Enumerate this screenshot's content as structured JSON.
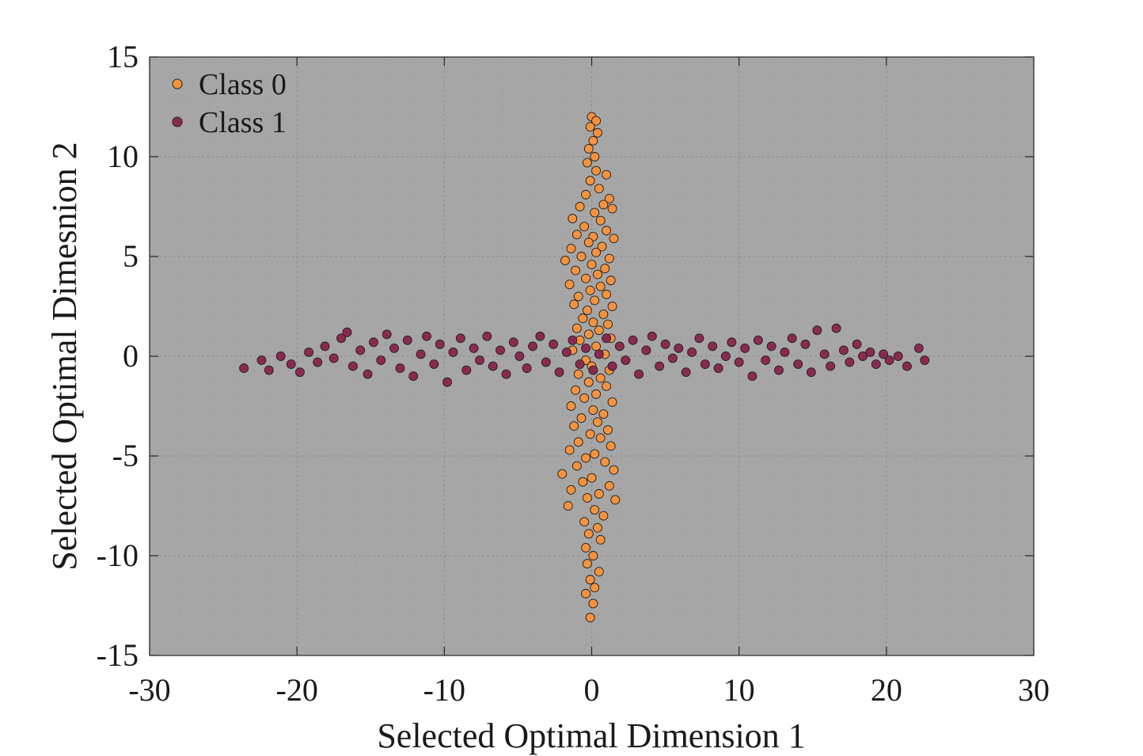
{
  "chart_data": {
    "type": "scatter",
    "title": "",
    "xlabel": "Selected Optimal Dimension 1",
    "ylabel": "Selected Optimal Dimesnion 2",
    "xlim": [
      -30,
      30
    ],
    "ylim": [
      -15,
      15
    ],
    "xticks": [
      -30,
      -20,
      -10,
      0,
      10,
      20,
      30
    ],
    "yticks": [
      -15,
      -10,
      -5,
      0,
      5,
      10,
      15
    ],
    "xtick_labels": [
      "-30",
      "-20",
      "-10",
      "0",
      "10",
      "20",
      "30"
    ],
    "ytick_labels": [
      "-15",
      "-10",
      "-5",
      "0",
      "5",
      "10",
      "15"
    ],
    "grid": "minor",
    "legend_position": "top-left",
    "background_color": "#a6a6a6",
    "series": [
      {
        "name": "Class 0",
        "color": "#f5923e",
        "values": [
          {
            "x": 0.0,
            "y": 12.0
          },
          {
            "x": 0.3,
            "y": 11.8
          },
          {
            "x": -0.1,
            "y": 11.5
          },
          {
            "x": 0.4,
            "y": 11.2
          },
          {
            "x": 0.1,
            "y": 10.8
          },
          {
            "x": -0.2,
            "y": 10.4
          },
          {
            "x": 0.2,
            "y": 10.0
          },
          {
            "x": -0.3,
            "y": 9.7
          },
          {
            "x": 1.0,
            "y": 9.1
          },
          {
            "x": 0.3,
            "y": 9.3
          },
          {
            "x": -0.1,
            "y": 8.8
          },
          {
            "x": 0.5,
            "y": 8.4
          },
          {
            "x": -0.4,
            "y": 8.1
          },
          {
            "x": 1.2,
            "y": 7.9
          },
          {
            "x": 0.8,
            "y": 7.6
          },
          {
            "x": -0.8,
            "y": 7.5
          },
          {
            "x": 0.2,
            "y": 7.2
          },
          {
            "x": 1.4,
            "y": 7.4
          },
          {
            "x": -1.3,
            "y": 6.9
          },
          {
            "x": 0.6,
            "y": 6.8
          },
          {
            "x": -0.5,
            "y": 6.5
          },
          {
            "x": 1.0,
            "y": 6.3
          },
          {
            "x": -1.0,
            "y": 6.1
          },
          {
            "x": 0.1,
            "y": 6.0
          },
          {
            "x": 1.5,
            "y": 5.9
          },
          {
            "x": -0.2,
            "y": 5.7
          },
          {
            "x": 0.7,
            "y": 5.5
          },
          {
            "x": -1.4,
            "y": 5.4
          },
          {
            "x": 0.3,
            "y": 5.2
          },
          {
            "x": -0.7,
            "y": 5.0
          },
          {
            "x": 1.2,
            "y": 4.9
          },
          {
            "x": -1.8,
            "y": 4.8
          },
          {
            "x": 0.0,
            "y": 4.6
          },
          {
            "x": 0.9,
            "y": 4.4
          },
          {
            "x": -1.1,
            "y": 4.3
          },
          {
            "x": 0.4,
            "y": 4.1
          },
          {
            "x": -0.4,
            "y": 3.9
          },
          {
            "x": 1.3,
            "y": 3.8
          },
          {
            "x": -1.5,
            "y": 3.6
          },
          {
            "x": 0.6,
            "y": 3.5
          },
          {
            "x": -0.1,
            "y": 3.3
          },
          {
            "x": 1.0,
            "y": 3.1
          },
          {
            "x": -0.9,
            "y": 3.0
          },
          {
            "x": 0.2,
            "y": 2.8
          },
          {
            "x": -1.2,
            "y": 2.6
          },
          {
            "x": 1.4,
            "y": 2.5
          },
          {
            "x": -0.3,
            "y": 2.3
          },
          {
            "x": 0.8,
            "y": 2.1
          },
          {
            "x": -0.6,
            "y": 1.9
          },
          {
            "x": 0.1,
            "y": 1.7
          },
          {
            "x": 1.1,
            "y": 1.6
          },
          {
            "x": -1.0,
            "y": 1.4
          },
          {
            "x": 0.5,
            "y": 1.3
          },
          {
            "x": -0.2,
            "y": 1.1
          },
          {
            "x": 1.3,
            "y": 0.9
          },
          {
            "x": -0.8,
            "y": 0.8
          },
          {
            "x": 0.3,
            "y": 0.5
          },
          {
            "x": -1.3,
            "y": 0.3
          },
          {
            "x": 0.9,
            "y": 0.1
          },
          {
            "x": -0.4,
            "y": -0.2
          },
          {
            "x": 0.0,
            "y": -0.5
          },
          {
            "x": 1.2,
            "y": -0.7
          },
          {
            "x": -0.9,
            "y": -0.9
          },
          {
            "x": 0.6,
            "y": -1.1
          },
          {
            "x": -0.2,
            "y": -1.3
          },
          {
            "x": 1.0,
            "y": -1.5
          },
          {
            "x": -1.1,
            "y": -1.7
          },
          {
            "x": 0.3,
            "y": -1.9
          },
          {
            "x": -0.5,
            "y": -2.1
          },
          {
            "x": 1.4,
            "y": -2.3
          },
          {
            "x": -1.4,
            "y": -2.5
          },
          {
            "x": 0.1,
            "y": -2.7
          },
          {
            "x": 0.8,
            "y": -2.9
          },
          {
            "x": -0.7,
            "y": -3.1
          },
          {
            "x": 0.4,
            "y": -3.3
          },
          {
            "x": -1.2,
            "y": -3.5
          },
          {
            "x": 1.1,
            "y": -3.7
          },
          {
            "x": -0.1,
            "y": -3.9
          },
          {
            "x": 0.6,
            "y": -4.1
          },
          {
            "x": -0.9,
            "y": -4.3
          },
          {
            "x": 1.3,
            "y": -4.5
          },
          {
            "x": -1.5,
            "y": -4.7
          },
          {
            "x": 0.2,
            "y": -4.9
          },
          {
            "x": -0.4,
            "y": -5.1
          },
          {
            "x": 0.9,
            "y": -5.3
          },
          {
            "x": -1.0,
            "y": -5.5
          },
          {
            "x": 1.5,
            "y": -5.7
          },
          {
            "x": -2.0,
            "y": -5.9
          },
          {
            "x": 0.0,
            "y": -6.1
          },
          {
            "x": -0.6,
            "y": -6.3
          },
          {
            "x": 1.2,
            "y": -6.5
          },
          {
            "x": -1.4,
            "y": -6.7
          },
          {
            "x": 0.5,
            "y": -6.9
          },
          {
            "x": -0.3,
            "y": -7.1
          },
          {
            "x": 1.6,
            "y": -7.2
          },
          {
            "x": -1.6,
            "y": -7.5
          },
          {
            "x": 0.2,
            "y": -7.7
          },
          {
            "x": 0.8,
            "y": -8.0
          },
          {
            "x": -0.5,
            "y": -8.3
          },
          {
            "x": 0.4,
            "y": -8.6
          },
          {
            "x": -0.2,
            "y": -8.9
          },
          {
            "x": 0.6,
            "y": -9.2
          },
          {
            "x": -0.4,
            "y": -9.6
          },
          {
            "x": 0.1,
            "y": -10.0
          },
          {
            "x": -0.3,
            "y": -10.4
          },
          {
            "x": 0.5,
            "y": -10.8
          },
          {
            "x": -0.1,
            "y": -11.2
          },
          {
            "x": 0.2,
            "y": -11.6
          },
          {
            "x": -0.4,
            "y": -11.9
          },
          {
            "x": 0.1,
            "y": -12.4
          },
          {
            "x": -0.1,
            "y": -13.1
          }
        ]
      },
      {
        "name": "Class 1",
        "color": "#8b2a50",
        "values": [
          {
            "x": -23.6,
            "y": -0.6
          },
          {
            "x": -22.4,
            "y": -0.2
          },
          {
            "x": -21.9,
            "y": -0.7
          },
          {
            "x": -21.1,
            "y": 0.0
          },
          {
            "x": -20.4,
            "y": -0.4
          },
          {
            "x": -19.8,
            "y": -0.8
          },
          {
            "x": -19.2,
            "y": 0.2
          },
          {
            "x": -18.6,
            "y": -0.3
          },
          {
            "x": -18.1,
            "y": 0.5
          },
          {
            "x": -17.5,
            "y": -0.1
          },
          {
            "x": -17.0,
            "y": 0.9
          },
          {
            "x": -16.6,
            "y": 1.2
          },
          {
            "x": -16.2,
            "y": -0.5
          },
          {
            "x": -15.7,
            "y": 0.3
          },
          {
            "x": -15.2,
            "y": -0.9
          },
          {
            "x": -14.8,
            "y": 0.7
          },
          {
            "x": -14.3,
            "y": -0.2
          },
          {
            "x": -13.9,
            "y": 1.1
          },
          {
            "x": -13.4,
            "y": 0.4
          },
          {
            "x": -13.0,
            "y": -0.6
          },
          {
            "x": -12.5,
            "y": 0.8
          },
          {
            "x": -12.1,
            "y": -1.0
          },
          {
            "x": -11.6,
            "y": 0.1
          },
          {
            "x": -11.2,
            "y": 1.0
          },
          {
            "x": -10.7,
            "y": -0.4
          },
          {
            "x": -10.3,
            "y": 0.6
          },
          {
            "x": -9.8,
            "y": -1.3
          },
          {
            "x": -9.4,
            "y": 0.2
          },
          {
            "x": -8.9,
            "y": 0.9
          },
          {
            "x": -8.5,
            "y": -0.7
          },
          {
            "x": -8.0,
            "y": 0.4
          },
          {
            "x": -7.6,
            "y": -0.2
          },
          {
            "x": -7.1,
            "y": 1.0
          },
          {
            "x": -6.7,
            "y": -0.5
          },
          {
            "x": -6.2,
            "y": 0.3
          },
          {
            "x": -5.8,
            "y": -0.9
          },
          {
            "x": -5.3,
            "y": 0.7
          },
          {
            "x": -4.9,
            "y": 0.0
          },
          {
            "x": -4.4,
            "y": -0.6
          },
          {
            "x": -4.0,
            "y": 0.5
          },
          {
            "x": -3.5,
            "y": 1.0
          },
          {
            "x": -3.1,
            "y": -0.3
          },
          {
            "x": -2.6,
            "y": 0.6
          },
          {
            "x": -2.2,
            "y": -0.8
          },
          {
            "x": -1.7,
            "y": 0.2
          },
          {
            "x": -1.3,
            "y": 0.8
          },
          {
            "x": -0.8,
            "y": -0.4
          },
          {
            "x": -0.4,
            "y": 0.4
          },
          {
            "x": 0.1,
            "y": -0.7
          },
          {
            "x": 0.5,
            "y": 0.1
          },
          {
            "x": 1.0,
            "y": 0.9
          },
          {
            "x": 1.4,
            "y": -0.5
          },
          {
            "x": 1.9,
            "y": 0.5
          },
          {
            "x": 2.3,
            "y": -0.2
          },
          {
            "x": 2.8,
            "y": 0.8
          },
          {
            "x": 3.2,
            "y": -0.9
          },
          {
            "x": 3.7,
            "y": 0.3
          },
          {
            "x": 4.1,
            "y": 1.0
          },
          {
            "x": 4.6,
            "y": -0.5
          },
          {
            "x": 5.0,
            "y": 0.6
          },
          {
            "x": 5.5,
            "y": -0.1
          },
          {
            "x": 5.9,
            "y": 0.4
          },
          {
            "x": 6.4,
            "y": -0.8
          },
          {
            "x": 6.8,
            "y": 0.2
          },
          {
            "x": 7.3,
            "y": 0.9
          },
          {
            "x": 7.7,
            "y": -0.4
          },
          {
            "x": 8.2,
            "y": 0.5
          },
          {
            "x": 8.6,
            "y": -0.6
          },
          {
            "x": 9.1,
            "y": 0.0
          },
          {
            "x": 9.5,
            "y": 0.7
          },
          {
            "x": 10.0,
            "y": -0.3
          },
          {
            "x": 10.4,
            "y": 0.4
          },
          {
            "x": 10.9,
            "y": -1.0
          },
          {
            "x": 11.3,
            "y": 0.8
          },
          {
            "x": 11.8,
            "y": -0.2
          },
          {
            "x": 12.2,
            "y": 0.5
          },
          {
            "x": 12.7,
            "y": -0.7
          },
          {
            "x": 13.1,
            "y": 0.2
          },
          {
            "x": 13.6,
            "y": 0.9
          },
          {
            "x": 14.0,
            "y": -0.4
          },
          {
            "x": 14.5,
            "y": 0.6
          },
          {
            "x": 14.9,
            "y": -0.8
          },
          {
            "x": 15.3,
            "y": 1.3
          },
          {
            "x": 15.8,
            "y": 0.1
          },
          {
            "x": 16.2,
            "y": -0.5
          },
          {
            "x": 16.6,
            "y": 1.4
          },
          {
            "x": 17.1,
            "y": 0.3
          },
          {
            "x": 17.5,
            "y": -0.3
          },
          {
            "x": 18.0,
            "y": 0.6
          },
          {
            "x": 18.4,
            "y": 0.0
          },
          {
            "x": 18.9,
            "y": 0.2
          },
          {
            "x": 19.3,
            "y": -0.4
          },
          {
            "x": 19.8,
            "y": 0.1
          },
          {
            "x": 20.2,
            "y": -0.2
          },
          {
            "x": 20.8,
            "y": 0.0
          },
          {
            "x": 21.4,
            "y": -0.5
          },
          {
            "x": 22.2,
            "y": 0.4
          },
          {
            "x": 22.6,
            "y": -0.2
          }
        ]
      }
    ]
  }
}
